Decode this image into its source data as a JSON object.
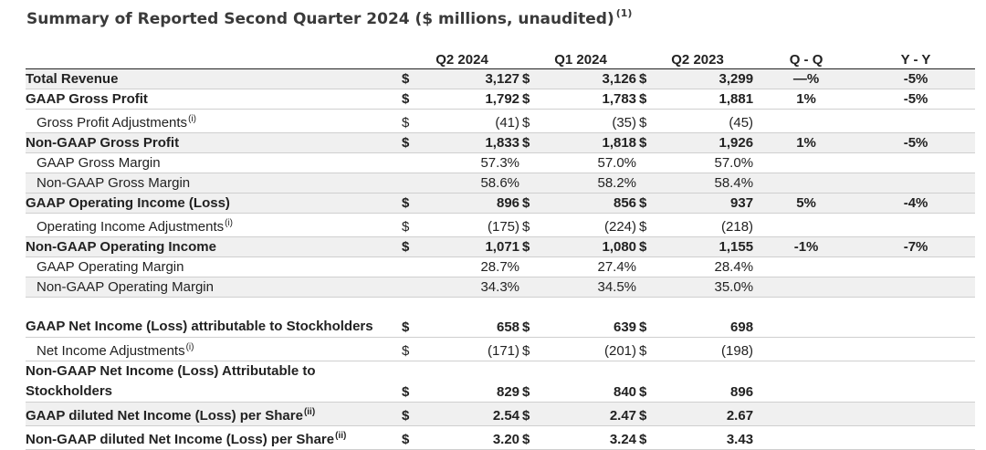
{
  "title": "Summary of Reported Second Quarter 2024 ($ millions, unaudited)",
  "title_footnote": "(1)",
  "columns": [
    "Q2 2024",
    "Q1 2024",
    "Q2 2023",
    "Q - Q",
    "Y - Y"
  ],
  "rows": [
    {
      "label": "Total Revenue",
      "fn": "",
      "d1": "$",
      "v1": "3,127",
      "d2": "$",
      "v2": "3,126",
      "d3": "$",
      "v3": "3,299",
      "qq": "—%",
      "yy": "-5%"
    },
    {
      "label": "GAAP Gross Profit",
      "fn": "",
      "d1": "$",
      "v1": "1,792",
      "d2": "$",
      "v2": "1,783",
      "d3": "$",
      "v3": "1,881",
      "qq": "1%",
      "yy": "-5%"
    },
    {
      "label": "Gross Profit Adjustments",
      "fn": "(i)",
      "d1": "$",
      "v1": "(41)",
      "d2": "$",
      "v2": "(35)",
      "d3": "$",
      "v3": "(45)",
      "qq": "",
      "yy": ""
    },
    {
      "label": "Non-GAAP Gross Profit",
      "fn": "",
      "d1": "$",
      "v1": "1,833",
      "d2": "$",
      "v2": "1,818",
      "d3": "$",
      "v3": "1,926",
      "qq": "1%",
      "yy": "-5%"
    },
    {
      "label": "GAAP Gross Margin",
      "fn": "",
      "d1": "",
      "v1": "57.3%",
      "d2": "",
      "v2": "57.0%",
      "d3": "",
      "v3": "57.0%",
      "qq": "",
      "yy": ""
    },
    {
      "label": "Non-GAAP Gross Margin",
      "fn": "",
      "d1": "",
      "v1": "58.6%",
      "d2": "",
      "v2": "58.2%",
      "d3": "",
      "v3": "58.4%",
      "qq": "",
      "yy": ""
    },
    {
      "label": "GAAP Operating Income (Loss)",
      "fn": "",
      "d1": "$",
      "v1": "896",
      "d2": "$",
      "v2": "856",
      "d3": "$",
      "v3": "937",
      "qq": "5%",
      "yy": "-4%"
    },
    {
      "label": "Operating Income Adjustments",
      "fn": "(i)",
      "d1": "$",
      "v1": "(175)",
      "d2": "$",
      "v2": "(224)",
      "d3": "$",
      "v3": "(218)",
      "qq": "",
      "yy": ""
    },
    {
      "label": "Non-GAAP Operating Income",
      "fn": "",
      "d1": "$",
      "v1": "1,071",
      "d2": "$",
      "v2": "1,080",
      "d3": "$",
      "v3": "1,155",
      "qq": "-1%",
      "yy": "-7%"
    },
    {
      "label": "GAAP Operating Margin",
      "fn": "",
      "d1": "",
      "v1": "28.7%",
      "d2": "",
      "v2": "27.4%",
      "d3": "",
      "v3": "28.4%",
      "qq": "",
      "yy": ""
    },
    {
      "label": "Non-GAAP Operating Margin",
      "fn": "",
      "d1": "",
      "v1": "34.3%",
      "d2": "",
      "v2": "34.5%",
      "d3": "",
      "v3": "35.0%",
      "qq": "",
      "yy": ""
    },
    {
      "label": "GAAP Net Income (Loss) attributable to Stockholders",
      "fn": "",
      "d1": "$",
      "v1": "658",
      "d2": "$",
      "v2": "639",
      "d3": "$",
      "v3": "698",
      "qq": "",
      "yy": ""
    },
    {
      "label": "Net Income Adjustments",
      "fn": "(i)",
      "d1": "$",
      "v1": "(171)",
      "d2": "$",
      "v2": "(201)",
      "d3": "$",
      "v3": "(198)",
      "qq": "",
      "yy": ""
    },
    {
      "label": "Non-GAAP Net Income (Loss) Attributable to Stockholders",
      "fn": "",
      "d1": "$",
      "v1": "829",
      "d2": "$",
      "v2": "840",
      "d3": "$",
      "v3": "896",
      "qq": "",
      "yy": ""
    },
    {
      "label": "GAAP diluted Net Income (Loss) per Share",
      "fn": "(ii)",
      "d1": "$",
      "v1": "2.54",
      "d2": "$",
      "v2": "2.47",
      "d3": "$",
      "v3": "2.67",
      "qq": "",
      "yy": ""
    },
    {
      "label": "Non-GAAP diluted Net Income (Loss) per Share",
      "fn": "(ii)",
      "d1": "$",
      "v1": "3.20",
      "d2": "$",
      "v2": "3.24",
      "d3": "$",
      "v3": "3.43",
      "qq": "",
      "yy": ""
    }
  ]
}
